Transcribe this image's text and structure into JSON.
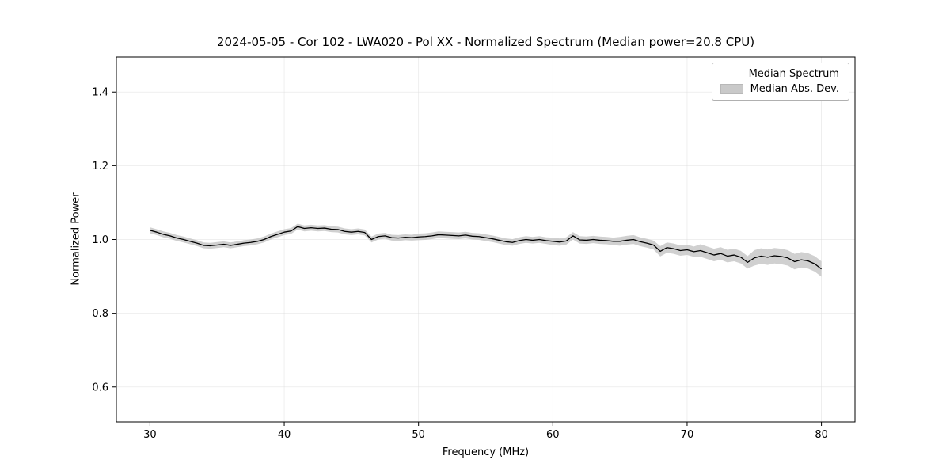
{
  "chart_data": {
    "type": "line",
    "title": "2024-05-05 - Cor 102 - LWA020 - Pol XX - Normalized Spectrum (Median power=20.8 CPU)",
    "xlabel": "Frequency (MHz)",
    "ylabel": "Normalized Power",
    "xlim": [
      27.5,
      82.5
    ],
    "ylim": [
      0.505,
      1.495
    ],
    "xticks": [
      30,
      40,
      50,
      60,
      70,
      80
    ],
    "yticks": [
      0.6,
      0.8,
      1.0,
      1.2,
      1.4
    ],
    "grid": true,
    "legend_position": "upper right",
    "legend": [
      {
        "label": "Median Spectrum",
        "type": "line",
        "color": "#000000"
      },
      {
        "label": "Median Abs. Dev.",
        "type": "band",
        "color": "#c9c9c9"
      }
    ],
    "line_color": "#000000",
    "band_color": "#c4c4c4",
    "band_opacity": 0.8,
    "x": [
      30,
      30.5,
      31,
      31.5,
      32,
      32.5,
      33,
      33.5,
      34,
      34.5,
      35,
      35.5,
      36,
      36.5,
      37,
      37.5,
      38,
      38.5,
      39,
      39.5,
      40,
      40.5,
      41,
      41.5,
      42,
      42.5,
      43,
      43.5,
      44,
      44.5,
      45,
      45.5,
      46,
      46.5,
      47,
      47.5,
      48,
      48.5,
      49,
      49.5,
      50,
      50.5,
      51,
      51.5,
      52,
      52.5,
      53,
      53.5,
      54,
      54.5,
      55,
      55.5,
      56,
      56.5,
      57,
      57.5,
      58,
      58.5,
      59,
      59.5,
      60,
      60.5,
      61,
      61.5,
      62,
      62.5,
      63,
      63.5,
      64,
      64.5,
      65,
      65.5,
      66,
      66.5,
      67,
      67.5,
      68,
      68.5,
      69,
      69.5,
      70,
      70.5,
      71,
      71.5,
      72,
      72.5,
      73,
      73.5,
      74,
      74.5,
      75,
      75.5,
      76,
      76.5,
      77,
      77.5,
      78,
      78.5,
      79,
      79.5,
      80
    ],
    "median": [
      1.025,
      1.02,
      1.014,
      1.01,
      1.004,
      1.0,
      0.995,
      0.99,
      0.984,
      0.983,
      0.985,
      0.987,
      0.984,
      0.987,
      0.99,
      0.992,
      0.995,
      1.0,
      1.008,
      1.014,
      1.02,
      1.023,
      1.035,
      1.03,
      1.032,
      1.03,
      1.031,
      1.028,
      1.027,
      1.022,
      1.02,
      1.022,
      1.019,
      1.0,
      1.008,
      1.01,
      1.005,
      1.004,
      1.006,
      1.005,
      1.007,
      1.008,
      1.01,
      1.013,
      1.012,
      1.011,
      1.01,
      1.012,
      1.009,
      1.008,
      1.005,
      1.002,
      0.998,
      0.994,
      0.992,
      0.997,
      1.0,
      0.998,
      1.0,
      0.997,
      0.995,
      0.993,
      0.996,
      1.01,
      0.999,
      0.998,
      1.0,
      0.998,
      0.997,
      0.995,
      0.995,
      0.998,
      1.0,
      0.994,
      0.99,
      0.985,
      0.968,
      0.978,
      0.975,
      0.97,
      0.972,
      0.967,
      0.97,
      0.964,
      0.958,
      0.962,
      0.955,
      0.958,
      0.952,
      0.938,
      0.95,
      0.955,
      0.952,
      0.956,
      0.954,
      0.95,
      0.94,
      0.945,
      0.942,
      0.934,
      0.92
    ],
    "mad": [
      0.008,
      0.008,
      0.008,
      0.008,
      0.008,
      0.008,
      0.008,
      0.008,
      0.008,
      0.008,
      0.008,
      0.008,
      0.008,
      0.008,
      0.008,
      0.008,
      0.008,
      0.008,
      0.008,
      0.008,
      0.008,
      0.008,
      0.008,
      0.008,
      0.008,
      0.008,
      0.008,
      0.008,
      0.008,
      0.008,
      0.008,
      0.008,
      0.008,
      0.008,
      0.008,
      0.008,
      0.008,
      0.008,
      0.008,
      0.008,
      0.009,
      0.009,
      0.009,
      0.009,
      0.009,
      0.009,
      0.009,
      0.009,
      0.009,
      0.009,
      0.009,
      0.009,
      0.009,
      0.009,
      0.009,
      0.009,
      0.009,
      0.009,
      0.009,
      0.009,
      0.01,
      0.01,
      0.01,
      0.01,
      0.01,
      0.01,
      0.01,
      0.01,
      0.01,
      0.01,
      0.012,
      0.012,
      0.012,
      0.012,
      0.012,
      0.012,
      0.014,
      0.014,
      0.014,
      0.014,
      0.014,
      0.014,
      0.017,
      0.017,
      0.017,
      0.017,
      0.017,
      0.017,
      0.017,
      0.017,
      0.021,
      0.021,
      0.021,
      0.021,
      0.021,
      0.021,
      0.021,
      0.021,
      0.021,
      0.021,
      0.021
    ]
  }
}
